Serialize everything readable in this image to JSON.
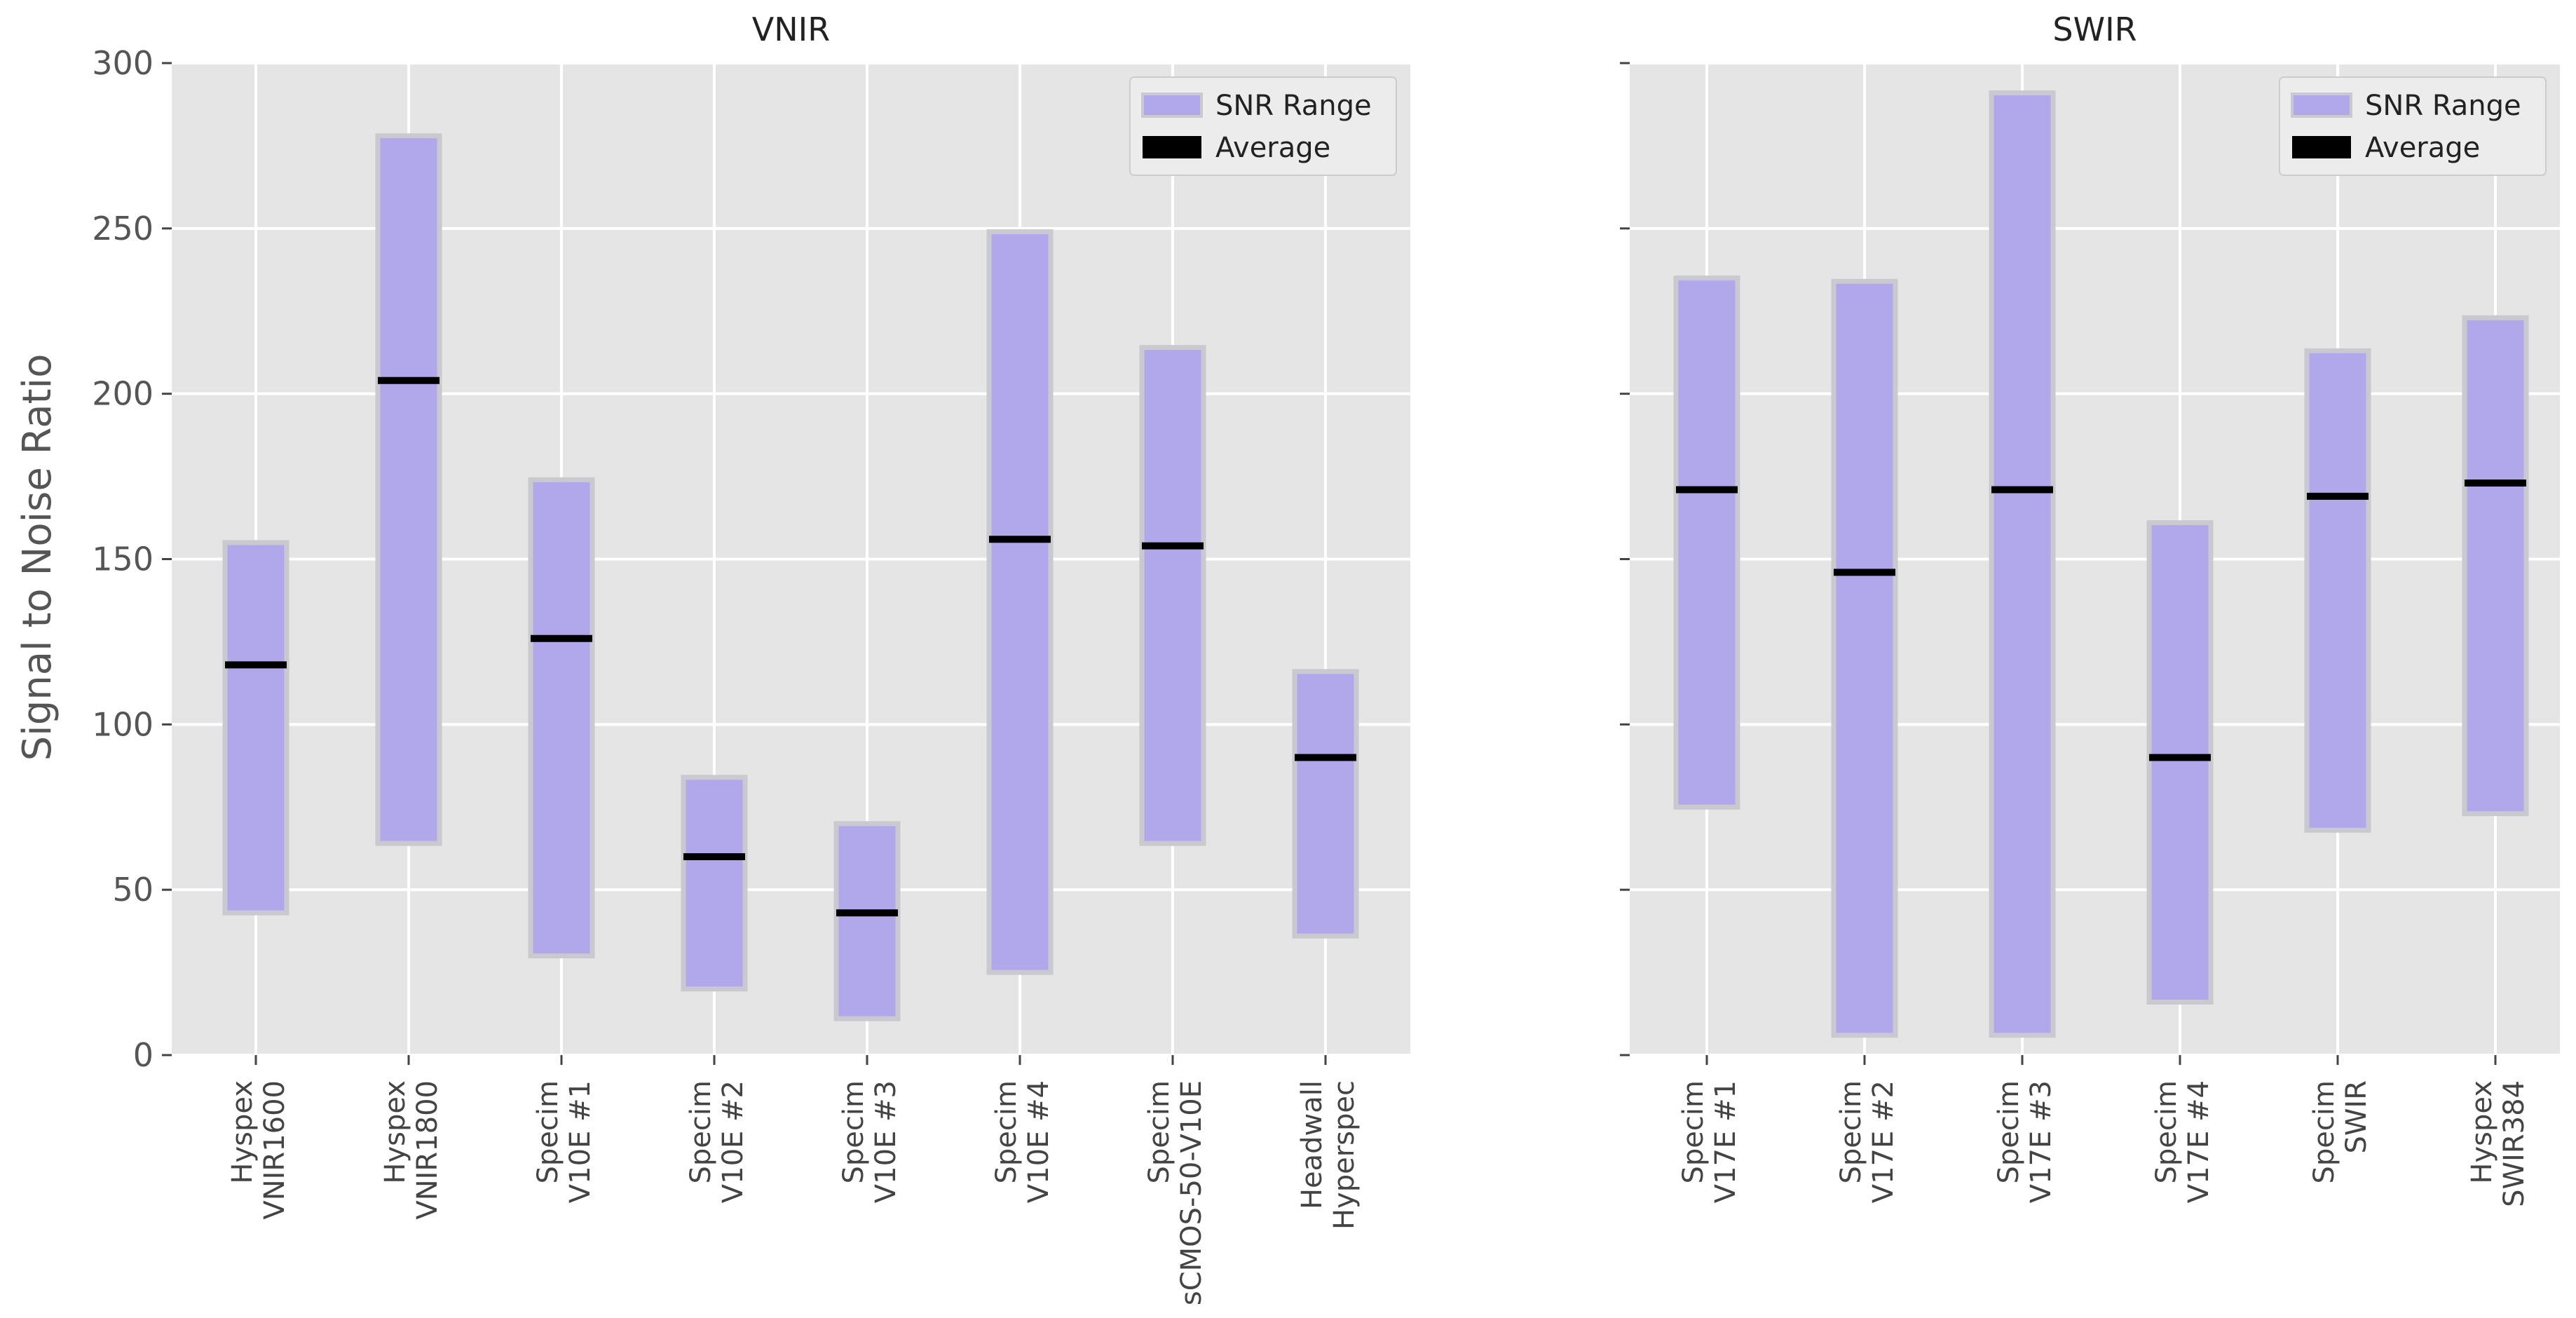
{
  "chart_data": [
    {
      "type": "bar",
      "subtype": "range-with-average",
      "title": "VNIR",
      "ylabel": "Signal to Noise Ratio",
      "ylim": [
        0,
        300
      ],
      "yticks": [
        0,
        50,
        100,
        150,
        200,
        250,
        300
      ],
      "grid": true,
      "legend": {
        "position": "top-right",
        "entries": [
          "SNR Range",
          "Average"
        ]
      },
      "categories": [
        [
          "Hyspex",
          "VNIR1600"
        ],
        [
          "Hyspex",
          "VNIR1800"
        ],
        [
          "Specim",
          "V10E #1"
        ],
        [
          "Specim",
          "V10E #2"
        ],
        [
          "Specim",
          "V10E #3"
        ],
        [
          "Specim",
          "V10E #4"
        ],
        [
          "Specim",
          "sCMOS-50-V10E"
        ],
        [
          "Headwall",
          "Hyperspec"
        ]
      ],
      "series": [
        {
          "name": "SNR Range min",
          "values": [
            43,
            64,
            30,
            20,
            11,
            25,
            64,
            36
          ]
        },
        {
          "name": "SNR Range max",
          "values": [
            155,
            278,
            174,
            84,
            70,
            249,
            214,
            116
          ]
        },
        {
          "name": "Average",
          "values": [
            118,
            204,
            126,
            60,
            43,
            156,
            154,
            90
          ]
        }
      ]
    },
    {
      "type": "bar",
      "subtype": "range-with-average",
      "title": "SWIR",
      "ylabel": "",
      "ylim": [
        0,
        300
      ],
      "yticks": [
        0,
        50,
        100,
        150,
        200,
        250,
        300
      ],
      "grid": true,
      "legend": {
        "position": "top-right",
        "entries": [
          "SNR Range",
          "Average"
        ]
      },
      "categories": [
        [
          "Specim",
          "V17E #1"
        ],
        [
          "Specim",
          "V17E #2"
        ],
        [
          "Specim",
          "V17E #3"
        ],
        [
          "Specim",
          "V17E #4"
        ],
        [
          "Specim",
          "SWIR"
        ],
        [
          "Hyspex",
          "SWIR384"
        ]
      ],
      "series": [
        {
          "name": "SNR Range min",
          "values": [
            75,
            6,
            6,
            16,
            68,
            73
          ]
        },
        {
          "name": "SNR Range max",
          "values": [
            235,
            234,
            291,
            161,
            213,
            223
          ]
        },
        {
          "name": "Average",
          "values": [
            171,
            146,
            171,
            90,
            169,
            173
          ]
        }
      ]
    }
  ],
  "colors": {
    "range_fill": "#b1a8ec",
    "range_edge": "#c9c9cf",
    "average": "#000000",
    "plot_bg": "#e5e5e5",
    "grid": "#ffffff"
  }
}
